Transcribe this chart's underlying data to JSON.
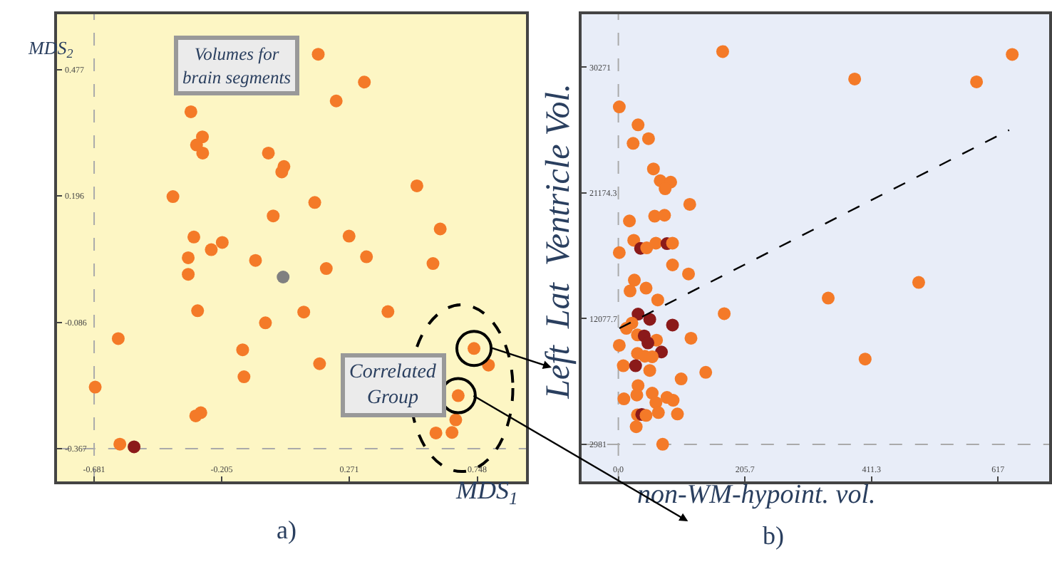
{
  "chart_data": [
    {
      "type": "scatter",
      "xlabel": "MDS$_{1}$",
      "ylabel": "MDS$_{2}$",
      "marker": "circle",
      "xlim": [
        -0.82,
        0.93
      ],
      "ylim": [
        -0.44,
        0.6
      ],
      "xticks": [
        -0.681,
        -0.205,
        0.271,
        0.748
      ],
      "yticks": [
        -0.367,
        -0.086,
        0.196,
        0.477
      ],
      "ref_lines": [
        {
          "axis": "x",
          "value": -0.681,
          "color": "#aaaaaa",
          "line_style": "dashed"
        },
        {
          "axis": "y",
          "value": -0.367,
          "color": "#aaaaaa",
          "line_style": "dashed"
        }
      ],
      "annotations": [
        "Volumes for\nbrain segments",
        "Correlated\nGroup",
        "a)"
      ],
      "series": [
        {
          "x": [
            0.155,
            0.327,
            0.222,
            -0.32,
            -0.277,
            -0.299,
            -0.276,
            -0.031,
            0.027,
            0.019,
            0.523,
            -0.387,
            0.142,
            -0.013,
            0.61,
            -0.309,
            0.27,
            -0.203,
            -0.244,
            -0.33,
            -0.079,
            0.335,
            0.583,
            0.185,
            -0.33,
            0.024,
            -0.295,
            0.101,
            0.415,
            -0.042,
            -0.591,
            -0.127,
            0.736,
            0.79,
            0.16,
            -0.677,
            -0.122,
            0.677,
            -0.283,
            -0.302,
            0.668,
            0.594,
            0.654,
            -0.585,
            -0.532
          ],
          "values": [
            0.511,
            0.449,
            0.407,
            0.383,
            0.327,
            0.309,
            0.291,
            0.291,
            0.261,
            0.249,
            0.218,
            0.194,
            0.181,
            0.151,
            0.122,
            0.104,
            0.106,
            0.092,
            0.076,
            0.058,
            0.052,
            0.06,
            0.045,
            0.034,
            0.021,
            0.015,
            -0.06,
            -0.063,
            -0.062,
            -0.087,
            -0.122,
            -0.147,
            -0.144,
            -0.181,
            -0.178,
            -0.23,
            -0.207,
            -0.249,
            -0.287,
            -0.294,
            -0.303,
            -0.332,
            -0.331,
            -0.357,
            -0.363
          ],
          "colors": [
            "#f47a28",
            "#f47a28",
            "#f47a28",
            "#f47a28",
            "#f47a28",
            "#f47a28",
            "#f47a28",
            "#f47a28",
            "#f47a28",
            "#f47a28",
            "#f47a28",
            "#f47a28",
            "#f47a28",
            "#f47a28",
            "#f47a28",
            "#f47a28",
            "#f47a28",
            "#f47a28",
            "#f47a28",
            "#f47a28",
            "#f47a28",
            "#f47a28",
            "#f47a28",
            "#f47a28",
            "#f47a28",
            "#808080",
            "#f47a28",
            "#f47a28",
            "#f47a28",
            "#f47a28",
            "#f47a28",
            "#f47a28",
            "#f47a28",
            "#f47a28",
            "#f47a28",
            "#f47a28",
            "#f47a28",
            "#f47a28",
            "#f47a28",
            "#f47a28",
            "#f47a28",
            "#f47a28",
            "#f47a28",
            "#f47a28",
            "#8b1a1a"
          ]
        }
      ]
    },
    {
      "type": "scatter",
      "xlabel": "non-WM-hypoint. vol.",
      "ylabel": "Left  Lat  Ventricle Vol.",
      "marker": "circle",
      "xlim": [
        -60,
        700
      ],
      "ylim": [
        300,
        34100
      ],
      "xticks": [
        {
          "value": 0,
          "label": "0.0"
        },
        205.7,
        411.3,
        617
      ],
      "yticks": [
        2981,
        12077.7,
        21174.3,
        30271
      ],
      "ref_lines": [
        {
          "axis": "x",
          "value": 0,
          "color": "#aaaaaa",
          "line_style": "dashed"
        },
        {
          "axis": "y",
          "value": 2981,
          "color": "#aaaaaa",
          "line_style": "dashed"
        }
      ],
      "annotations": [
        "b)"
      ],
      "series": [
        {
          "x": [
            169.5,
            640,
            384,
            582,
            1.5,
            32,
            24,
            49,
            57,
            68,
            85,
            76,
            116,
            18,
            59,
            75,
            25,
            36,
            46,
            61,
            79,
            88,
            1.5,
            88,
            26,
            114,
            19,
            45,
            64,
            341,
            488,
            172,
            32,
            51,
            22,
            13,
            88,
            31,
            42,
            62,
            48,
            118,
            1.5,
            31,
            70,
            55,
            43,
            8,
            28,
            51,
            401,
            142,
            102,
            32,
            30,
            55,
            79,
            61,
            89,
            9,
            31,
            38,
            45,
            65,
            96,
            29,
            72
          ],
          "values": [
            31401,
            31195,
            29415,
            29210,
            27396,
            26095,
            24760,
            25102,
            22911,
            22056,
            21953,
            21474,
            20344,
            19146,
            19489,
            19557,
            17743,
            17161,
            17195,
            17538,
            17503,
            17538,
            16853,
            15963,
            14867,
            15312,
            14080,
            14285,
            13430,
            13567,
            14696,
            12437,
            12403,
            12026,
            11752,
            11376,
            11615,
            10897,
            10829,
            10520,
            10315,
            10658,
            10144,
            9562,
            9664,
            9322,
            9357,
            8672,
            8672,
            8329,
            9151,
            8193,
            7714,
            7234,
            6550,
            6687,
            6379,
            5998,
            6173,
            6276,
            5111,
            5146,
            5077,
            5283,
            5180,
            4256,
            2989
          ],
          "colors": [
            "#f47a28",
            "#f47a28",
            "#f47a28",
            "#f47a28",
            "#f47a28",
            "#f47a28",
            "#f47a28",
            "#f47a28",
            "#f47a28",
            "#f47a28",
            "#f47a28",
            "#f47a28",
            "#f47a28",
            "#f47a28",
            "#f47a28",
            "#f47a28",
            "#f47a28",
            "#8b1a1a",
            "#f47a28",
            "#f47a28",
            "#8b1a1a",
            "#f47a28",
            "#f47a28",
            "#f47a28",
            "#f47a28",
            "#f47a28",
            "#f47a28",
            "#f47a28",
            "#f47a28",
            "#f47a28",
            "#f47a28",
            "#f47a28",
            "#8b1a1a",
            "#8b1a1a",
            "#f47a28",
            "#f47a28",
            "#8b1a1a",
            "#f47a28",
            "#8b1a1a",
            "#f47a28",
            "#8b1a1a",
            "#f47a28",
            "#f47a28",
            "#f47a28",
            "#8b1a1a",
            "#f47a28",
            "#f47a28",
            "#f47a28",
            "#8b1a1a",
            "#f47a28",
            "#f47a28",
            "#f47a28",
            "#f47a28",
            "#f47a28",
            "#f47a28",
            "#f47a28",
            "#f47a28",
            "#f47a28",
            "#f47a28",
            "#f47a28",
            "#f47a28",
            "#8b1a1a",
            "#f47a28",
            "#f47a28",
            "#f47a28",
            "#f47a28",
            "#f47a28"
          ]
        },
        {
          "type": "line",
          "marker": "none",
          "line_style": "dashed",
          "color": "#000000",
          "x": [
            1.5,
            635
          ],
          "values": [
            11376,
            25718
          ]
        }
      ]
    }
  ]
}
